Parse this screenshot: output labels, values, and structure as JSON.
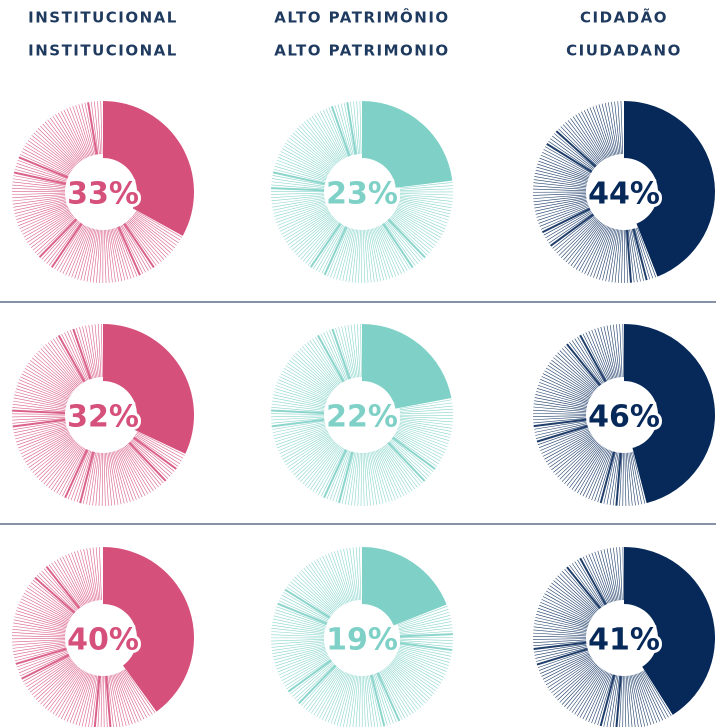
{
  "headers": [
    {
      "line1": "INSTITUCIONAL",
      "line2": "INSTITUCIONAL",
      "color": "#d6507c"
    },
    {
      "line1": "ALTO PATRIMÔNIO",
      "line2": "ALTO PATRIMONIO",
      "color": "#7fd1c7"
    },
    {
      "line1": "CIDADÃO",
      "line2": "CIUDADANO",
      "color": "#06295a"
    }
  ],
  "chart_data": [
    {
      "type": "pie",
      "values": [
        33
      ],
      "value_labels": [
        "33%"
      ],
      "color": "#d6507c"
    },
    {
      "type": "pie",
      "values": [
        23
      ],
      "value_labels": [
        "23%"
      ],
      "color": "#7fd1c7"
    },
    {
      "type": "pie",
      "values": [
        44
      ],
      "value_labels": [
        "44%"
      ],
      "color": "#06295a"
    },
    {
      "type": "pie",
      "values": [
        32
      ],
      "value_labels": [
        "32%"
      ],
      "color": "#d6507c"
    },
    {
      "type": "pie",
      "values": [
        22
      ],
      "value_labels": [
        "22%"
      ],
      "color": "#7fd1c7"
    },
    {
      "type": "pie",
      "values": [
        46
      ],
      "value_labels": [
        "46%"
      ],
      "color": "#06295a"
    },
    {
      "type": "pie",
      "values": [
        40
      ],
      "value_labels": [
        "40%"
      ],
      "color": "#d6507c"
    },
    {
      "type": "pie",
      "values": [
        19
      ],
      "value_labels": [
        "19%"
      ],
      "color": "#7fd1c7"
    },
    {
      "type": "pie",
      "values": [
        41
      ],
      "value_labels": [
        "41%"
      ],
      "color": "#06295a"
    }
  ]
}
